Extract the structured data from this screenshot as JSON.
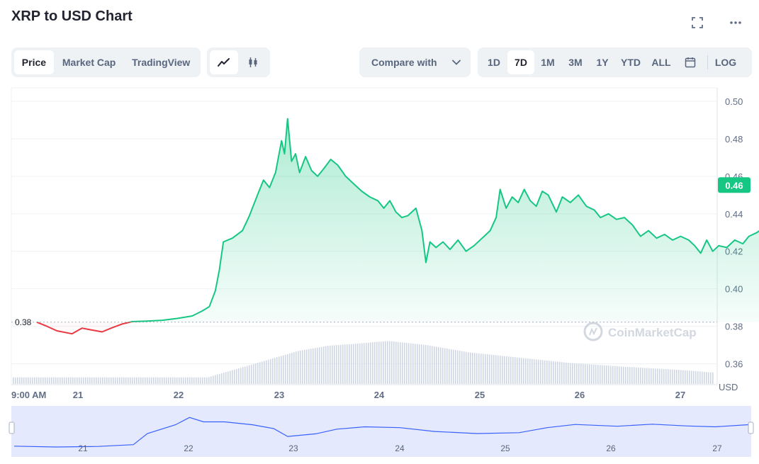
{
  "title": "XRP to USD Chart",
  "toolbar": {
    "view_tabs": [
      "Price",
      "Market Cap",
      "TradingView"
    ],
    "active_view": "Price",
    "chart_type_icons": [
      "line-chart-icon",
      "candlestick-icon"
    ],
    "compare_label": "Compare with",
    "ranges": [
      "1D",
      "7D",
      "1M",
      "3M",
      "1Y",
      "YTD",
      "ALL"
    ],
    "active_range": "7D",
    "log_label": "LOG"
  },
  "colors": {
    "up": "#16c784",
    "down": "#ea3943",
    "navigator": "#3861fb",
    "navigator_fill": "#e5e9fe",
    "volume": "#cfd6e4",
    "grid": "#eff2f5"
  },
  "watermark": "CoinMarketCap",
  "current_price_label": "0.46",
  "open_price_label": "0.38",
  "chart_data": {
    "type": "line",
    "title": "XRP to USD Chart",
    "ylabel": "USD",
    "ylim": [
      0.35,
      0.5
    ],
    "y_ticks": [
      "0.50",
      "0.48",
      "0.46",
      "0.44",
      "0.42",
      "0.40",
      "0.38",
      "0.36"
    ],
    "x_ticks": [
      "9:00 AM",
      "21",
      "22",
      "23",
      "24",
      "25",
      "26",
      "27"
    ],
    "nav_x_ticks": [
      "21",
      "22",
      "23",
      "24",
      "25",
      "26",
      "27"
    ],
    "open_price": 0.3822,
    "current_price": 0.4553,
    "price_points": [
      [
        0.0,
        0.3822
      ],
      [
        0.1,
        0.38
      ],
      [
        0.2,
        0.3776
      ],
      [
        0.35,
        0.376
      ],
      [
        0.45,
        0.379
      ],
      [
        0.55,
        0.378
      ],
      [
        0.65,
        0.377
      ],
      [
        0.75,
        0.3792
      ],
      [
        0.85,
        0.3812
      ],
      [
        0.95,
        0.3825
      ],
      [
        1.1,
        0.3828
      ],
      [
        1.25,
        0.3832
      ],
      [
        1.4,
        0.3842
      ],
      [
        1.55,
        0.3855
      ],
      [
        1.65,
        0.3882
      ],
      [
        1.72,
        0.3905
      ],
      [
        1.78,
        0.399
      ],
      [
        1.82,
        0.41
      ],
      [
        1.86,
        0.425
      ],
      [
        1.95,
        0.427
      ],
      [
        2.05,
        0.431
      ],
      [
        2.12,
        0.439
      ],
      [
        2.2,
        0.45
      ],
      [
        2.26,
        0.458
      ],
      [
        2.32,
        0.454
      ],
      [
        2.38,
        0.462
      ],
      [
        2.44,
        0.479
      ],
      [
        2.47,
        0.472
      ],
      [
        2.5,
        0.4907
      ],
      [
        2.54,
        0.468
      ],
      [
        2.58,
        0.472
      ],
      [
        2.62,
        0.462
      ],
      [
        2.68,
        0.4705
      ],
      [
        2.74,
        0.463
      ],
      [
        2.8,
        0.46
      ],
      [
        2.86,
        0.464
      ],
      [
        2.93,
        0.469
      ],
      [
        3.0,
        0.466
      ],
      [
        3.08,
        0.46
      ],
      [
        3.16,
        0.456
      ],
      [
        3.24,
        0.452
      ],
      [
        3.32,
        0.449
      ],
      [
        3.4,
        0.447
      ],
      [
        3.46,
        0.443
      ],
      [
        3.52,
        0.447
      ],
      [
        3.58,
        0.441
      ],
      [
        3.64,
        0.438
      ],
      [
        3.7,
        0.439
      ],
      [
        3.78,
        0.443
      ],
      [
        3.84,
        0.431
      ],
      [
        3.88,
        0.414
      ],
      [
        3.92,
        0.425
      ],
      [
        3.98,
        0.422
      ],
      [
        4.05,
        0.425
      ],
      [
        4.12,
        0.421
      ],
      [
        4.2,
        0.426
      ],
      [
        4.28,
        0.42
      ],
      [
        4.36,
        0.423
      ],
      [
        4.44,
        0.427
      ],
      [
        4.52,
        0.431
      ],
      [
        4.58,
        0.438
      ],
      [
        4.62,
        0.453
      ],
      [
        4.68,
        0.443
      ],
      [
        4.74,
        0.449
      ],
      [
        4.8,
        0.446
      ],
      [
        4.86,
        0.453
      ],
      [
        4.92,
        0.447
      ],
      [
        4.98,
        0.444
      ],
      [
        5.04,
        0.452
      ],
      [
        5.1,
        0.45
      ],
      [
        5.18,
        0.441
      ],
      [
        5.24,
        0.449
      ],
      [
        5.32,
        0.446
      ],
      [
        5.4,
        0.45
      ],
      [
        5.48,
        0.444
      ],
      [
        5.56,
        0.442
      ],
      [
        5.62,
        0.438
      ],
      [
        5.7,
        0.44
      ],
      [
        5.78,
        0.437
      ],
      [
        5.86,
        0.438
      ],
      [
        5.94,
        0.434
      ],
      [
        6.02,
        0.428
      ],
      [
        6.1,
        0.431
      ],
      [
        6.18,
        0.427
      ],
      [
        6.26,
        0.429
      ],
      [
        6.34,
        0.426
      ],
      [
        6.42,
        0.428
      ],
      [
        6.5,
        0.426
      ],
      [
        6.56,
        0.423
      ],
      [
        6.62,
        0.419
      ],
      [
        6.68,
        0.426
      ],
      [
        6.74,
        0.42
      ],
      [
        6.8,
        0.423
      ],
      [
        6.88,
        0.422
      ],
      [
        6.96,
        0.426
      ],
      [
        7.04,
        0.424
      ],
      [
        7.1,
        0.428
      ],
      [
        7.18,
        0.43
      ],
      [
        7.26,
        0.433
      ],
      [
        7.32,
        0.443
      ],
      [
        7.36,
        0.45
      ],
      [
        7.42,
        0.448
      ],
      [
        7.48,
        0.451
      ],
      [
        7.56,
        0.444
      ],
      [
        7.64,
        0.448
      ],
      [
        7.72,
        0.447
      ],
      [
        7.8,
        0.45
      ],
      [
        7.86,
        0.448
      ],
      [
        7.92,
        0.462
      ],
      [
        7.98,
        0.458
      ],
      [
        8.04,
        0.462
      ],
      [
        8.12,
        0.459
      ],
      [
        8.18,
        0.455
      ],
      [
        8.24,
        0.46
      ],
      [
        8.3,
        0.452
      ],
      [
        8.38,
        0.454
      ],
      [
        8.44,
        0.449
      ],
      [
        8.5,
        0.452
      ],
      [
        8.58,
        0.45
      ],
      [
        8.66,
        0.451
      ],
      [
        8.74,
        0.45
      ],
      [
        8.82,
        0.452
      ],
      [
        8.9,
        0.458
      ],
      [
        8.98,
        0.455
      ],
      [
        9.06,
        0.46
      ],
      [
        9.14,
        0.462
      ],
      [
        9.2,
        0.459
      ],
      [
        9.28,
        0.457
      ],
      [
        9.36,
        0.454
      ],
      [
        9.42,
        0.453
      ],
      [
        9.48,
        0.45
      ],
      [
        9.56,
        0.451
      ],
      [
        9.64,
        0.45
      ],
      [
        9.72,
        0.448
      ],
      [
        9.8,
        0.449
      ],
      [
        9.88,
        0.447
      ],
      [
        9.96,
        0.449
      ],
      [
        10.04,
        0.452
      ],
      [
        10.1,
        0.45
      ],
      [
        10.18,
        0.453
      ],
      [
        10.24,
        0.448
      ],
      [
        10.3,
        0.456
      ],
      [
        10.36,
        0.454
      ],
      [
        10.42,
        0.459
      ],
      [
        10.47,
        0.4553
      ]
    ],
    "navigator_points": [
      [
        0.0,
        0.382
      ],
      [
        0.6,
        0.379
      ],
      [
        1.2,
        0.381
      ],
      [
        1.7,
        0.387
      ],
      [
        1.9,
        0.425
      ],
      [
        2.3,
        0.455
      ],
      [
        2.5,
        0.48
      ],
      [
        2.7,
        0.465
      ],
      [
        3.0,
        0.465
      ],
      [
        3.4,
        0.455
      ],
      [
        3.7,
        0.442
      ],
      [
        3.9,
        0.415
      ],
      [
        4.3,
        0.424
      ],
      [
        4.6,
        0.44
      ],
      [
        5.0,
        0.448
      ],
      [
        5.5,
        0.445
      ],
      [
        6.0,
        0.432
      ],
      [
        6.6,
        0.425
      ],
      [
        7.2,
        0.428
      ],
      [
        7.6,
        0.445
      ],
      [
        8.0,
        0.456
      ],
      [
        8.6,
        0.45
      ],
      [
        9.1,
        0.457
      ],
      [
        9.6,
        0.451
      ],
      [
        10.0,
        0.448
      ],
      [
        10.47,
        0.4553
      ]
    ],
    "volume_points": [
      [
        0.0,
        0.15
      ],
      [
        1.7,
        0.15
      ],
      [
        1.8,
        0.22
      ],
      [
        2.0,
        0.35
      ],
      [
        2.3,
        0.55
      ],
      [
        2.6,
        0.75
      ],
      [
        2.9,
        0.87
      ],
      [
        3.2,
        0.92
      ],
      [
        3.5,
        0.98
      ],
      [
        3.9,
        0.88
      ],
      [
        4.3,
        0.72
      ],
      [
        4.8,
        0.6
      ],
      [
        5.3,
        0.48
      ],
      [
        5.8,
        0.4
      ],
      [
        6.4,
        0.32
      ],
      [
        6.8,
        0.25
      ],
      [
        7.2,
        0.26
      ],
      [
        7.6,
        0.3
      ],
      [
        8.0,
        0.3
      ],
      [
        8.6,
        0.38
      ],
      [
        9.1,
        0.34
      ],
      [
        9.6,
        0.27
      ],
      [
        10.0,
        0.22
      ],
      [
        10.47,
        0.2
      ]
    ]
  }
}
